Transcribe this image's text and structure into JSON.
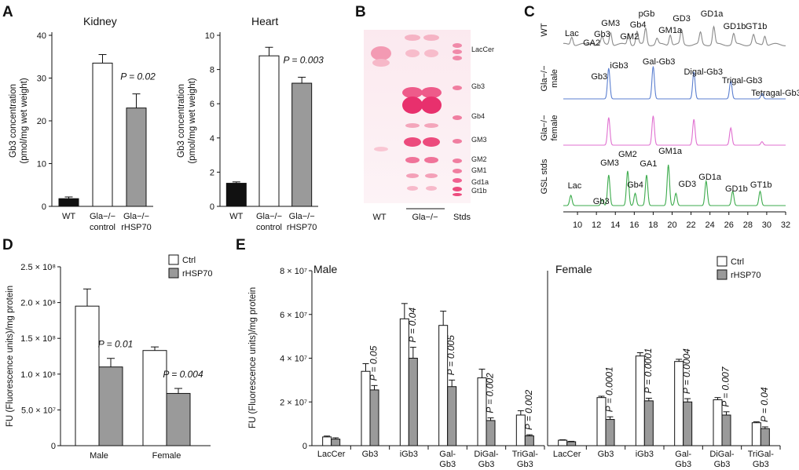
{
  "panels": {
    "A": "A",
    "B": "B",
    "C": "C",
    "D": "D",
    "E": "E"
  },
  "chart_data": [
    {
      "id": "A-kidney",
      "type": "bar",
      "title": "Kidney",
      "ylabel": [
        "Gb3 concentration",
        "(pmol/mg wet weight)"
      ],
      "ylim": [
        0,
        40
      ],
      "yticks": [
        0,
        10,
        20,
        30,
        40
      ],
      "categories": [
        [
          "WT"
        ],
        [
          "Gla−/−",
          "control"
        ],
        [
          "Gla−/−",
          "rHSP70"
        ]
      ],
      "values": [
        1.8,
        33.5,
        23.0
      ],
      "errors": [
        0.4,
        2.0,
        3.3
      ],
      "fills": [
        "#111111",
        "#ffffff",
        "#9a9a9a"
      ],
      "annotations": [
        {
          "text": "P = 0.02",
          "bar": 2
        }
      ]
    },
    {
      "id": "A-heart",
      "type": "bar",
      "title": "Heart",
      "ylabel": [
        "Gb3 concentration",
        "(pmol/mg wet weight)"
      ],
      "ylim": [
        0,
        10
      ],
      "yticks": [
        0,
        2,
        4,
        6,
        8,
        10
      ],
      "categories": [
        [
          "WT"
        ],
        [
          "Gla−/−",
          "control"
        ],
        [
          "Gla−/−",
          "rHSP70"
        ]
      ],
      "values": [
        1.35,
        8.8,
        7.2
      ],
      "errors": [
        0.08,
        0.5,
        0.35
      ],
      "fills": [
        "#111111",
        "#ffffff",
        "#9a9a9a"
      ],
      "annotations": [
        {
          "text": "P = 0.003",
          "bar": 2
        }
      ]
    },
    {
      "id": "D",
      "type": "bar",
      "ylabel": "FU (Fluorescence units)/mg protein",
      "ylim": [
        0,
        2.5
      ],
      "yticks": [
        0,
        0.5,
        1.0,
        1.5,
        2.0,
        2.5
      ],
      "ytick_labels": [
        "0",
        "5.0 × 10⁷",
        "1.0 × 10⁸",
        "1.5 × 10⁸",
        "2.0 × 10⁸",
        "2.5 × 10⁸"
      ],
      "value_scale": "× 10⁸",
      "categories": [
        "Male",
        "Female"
      ],
      "series": [
        {
          "name": "Ctrl",
          "values": [
            1.95,
            1.33
          ],
          "errors": [
            0.24,
            0.05
          ],
          "fill": "#ffffff"
        },
        {
          "name": "rHSP70",
          "values": [
            1.1,
            0.73
          ],
          "errors": [
            0.12,
            0.07
          ],
          "fill": "#9a9a9a"
        }
      ],
      "annotations": [
        {
          "text": "P = 0.01",
          "group": 0
        },
        {
          "text": "P = 0.004",
          "group": 1
        }
      ]
    },
    {
      "id": "E",
      "type": "bar",
      "ylabel": "FU (Fluorescence units)/mg protein",
      "ylim": [
        0,
        8
      ],
      "yticks": [
        0,
        2,
        4,
        6,
        8
      ],
      "ytick_labels": [
        "0",
        "2 × 10⁷",
        "4 × 10⁷",
        "6 × 10⁷",
        "8 × 10⁷"
      ],
      "value_scale": "× 10⁷",
      "legend": [
        "Ctrl",
        "rHSP70"
      ],
      "subpanels": [
        {
          "title": "Male",
          "categories": [
            [
              "LacCer"
            ],
            [
              "Gb3"
            ],
            [
              "iGb3"
            ],
            [
              "Gal-",
              "Gb3"
            ],
            [
              "DiGal-",
              "Gb3"
            ],
            [
              "TriGal-",
              "Gb3"
            ]
          ],
          "ctrl": [
            0.4,
            3.4,
            5.8,
            5.5,
            3.1,
            1.4
          ],
          "ctrl_err": [
            0.04,
            0.35,
            0.7,
            0.65,
            0.4,
            0.2
          ],
          "rhsp": [
            0.3,
            2.55,
            4.0,
            2.7,
            1.15,
            0.45
          ],
          "rhsp_err": [
            0.06,
            0.2,
            0.5,
            0.3,
            0.12,
            0.05
          ],
          "pvalues": [
            "",
            "P = 0.05",
            "P = 0.04",
            "P = 0.005",
            "P = 0.002",
            "P = 0.002"
          ]
        },
        {
          "title": "Female",
          "categories": [
            [
              "LacCer"
            ],
            [
              "Gb3"
            ],
            [
              "iGb3"
            ],
            [
              "Gal-",
              "Gb3"
            ],
            [
              "DiGal-",
              "Gb3"
            ],
            [
              "TriGal-",
              "Gb3"
            ]
          ],
          "ctrl": [
            0.25,
            2.2,
            4.1,
            3.85,
            2.1,
            1.05
          ],
          "ctrl_err": [
            0.02,
            0.06,
            0.15,
            0.1,
            0.1,
            0.04
          ],
          "rhsp": [
            0.18,
            1.2,
            2.05,
            2.0,
            1.4,
            0.78
          ],
          "rhsp_err": [
            0.02,
            0.12,
            0.12,
            0.15,
            0.15,
            0.08
          ],
          "pvalues": [
            "",
            "P = 0.0001",
            "P = 0.0001",
            "P = 0.0004",
            "P = 0.007",
            "P = 0.04"
          ]
        }
      ]
    },
    {
      "id": "C",
      "type": "line",
      "xlim": [
        8.5,
        32
      ],
      "xticks": [
        10,
        12,
        14,
        16,
        18,
        20,
        22,
        24,
        26,
        28,
        30,
        32
      ],
      "traces": [
        {
          "name": [
            "WT"
          ],
          "color": "#8a8a8a",
          "peaks": [
            [
              9.4,
              0.35
            ],
            [
              11.5,
              0.15
            ],
            [
              12.6,
              0.3
            ],
            [
              13.5,
              0.55
            ],
            [
              15.4,
              0.5
            ],
            [
              16.3,
              0.55
            ],
            [
              17.2,
              0.7
            ],
            [
              18.4,
              0.25
            ],
            [
              19.8,
              0.45
            ],
            [
              21.0,
              0.6
            ],
            [
              23.0,
              0.5
            ],
            [
              24.4,
              0.75
            ],
            [
              26.5,
              0.45
            ],
            [
              28.6,
              0.4
            ],
            [
              29.8,
              0.4
            ]
          ],
          "labels": [
            [
              "Lac",
              9.4
            ],
            [
              "GA2",
              11.5
            ],
            [
              "Gb3",
              12.6
            ],
            [
              "GM3",
              13.5
            ],
            [
              "GM2",
              15.5
            ],
            [
              "Gb4",
              16.4
            ],
            [
              "pGb",
              17.3
            ],
            [
              "GM1a",
              19.8
            ],
            [
              "GD3",
              21.0
            ],
            [
              "GD1a",
              24.2
            ],
            [
              "GD1b",
              26.6
            ],
            [
              "GT1b",
              28.9
            ]
          ]
        },
        {
          "name": [
            "Gla−/−",
            "male"
          ],
          "color": "#5b7fd0",
          "peaks": [
            [
              13.3,
              0.85
            ],
            [
              18.0,
              0.9
            ],
            [
              22.3,
              0.75
            ],
            [
              26.2,
              0.5
            ],
            [
              29.5,
              0.15
            ]
          ],
          "labels": [
            [
              "Gb3",
              12.3
            ],
            [
              "iGb3",
              14.4
            ],
            [
              "Gal-Gb3",
              18.6
            ],
            [
              "Digal-Gb3",
              23.3
            ],
            [
              "Trigal-Gb3",
              27.4
            ],
            [
              "Tetragal-Gb3",
              31.0
            ]
          ]
        },
        {
          "name": [
            "Gla−/−",
            "female"
          ],
          "color": "#e070d0",
          "peaks": [
            [
              13.3,
              0.8
            ],
            [
              18.0,
              0.85
            ],
            [
              22.3,
              0.75
            ],
            [
              26.2,
              0.5
            ],
            [
              29.5,
              0.1
            ]
          ],
          "labels": []
        },
        {
          "name": [
            "GSL stds"
          ],
          "color": "#3cab4c",
          "peaks": [
            [
              9.3,
              0.25
            ],
            [
              12.6,
              0.15
            ],
            [
              13.3,
              0.75
            ],
            [
              15.3,
              0.85
            ],
            [
              16.1,
              0.3
            ],
            [
              17.3,
              0.75
            ],
            [
              19.6,
              1.0
            ],
            [
              20.4,
              0.3
            ],
            [
              23.6,
              0.6
            ],
            [
              26.4,
              0.35
            ],
            [
              29.3,
              0.35
            ]
          ],
          "labels": [
            [
              "Lac",
              9.7
            ],
            [
              "Gb3",
              12.5
            ],
            [
              "GM3",
              13.4
            ],
            [
              "GM2",
              15.3
            ],
            [
              "Gb4",
              16.1
            ],
            [
              "GA1",
              17.5
            ],
            [
              "GM1a",
              19.8
            ],
            [
              "GD3",
              21.6
            ],
            [
              "GD1a",
              24.0
            ],
            [
              "GD1b",
              26.8
            ],
            [
              "GT1b",
              29.4
            ]
          ]
        }
      ]
    }
  ],
  "tlc": {
    "bands": [
      "LacCer",
      "Gb3",
      "Gb4",
      "GM3",
      "GM2",
      "GM1",
      "Gd1a",
      "Gt1b"
    ],
    "lanes": [
      "WT",
      "Gla−/−",
      "Stds"
    ]
  }
}
